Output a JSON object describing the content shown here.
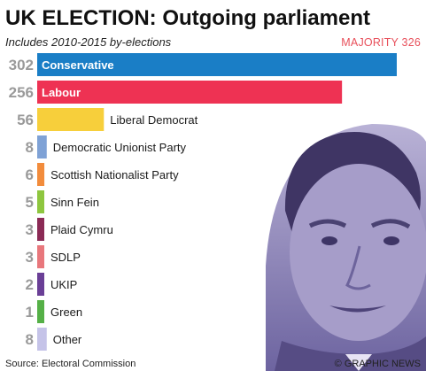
{
  "header": {
    "title": "UK ELECTION: Outgoing parliament",
    "subtitle": "Includes 2010-2015 by-elections",
    "majority_label": "MAJORITY 326"
  },
  "footer": {
    "source": "Source: Electoral Commission",
    "credit": "© GRAPHIC NEWS"
  },
  "colors": {
    "majority": "#e8505b",
    "seat_numbers": "#9a9a9a",
    "photo_tint": "#8a80b8"
  },
  "photo": {
    "icon": "politician-portrait-icon"
  },
  "chart_data": {
    "type": "bar",
    "orientation": "horizontal",
    "title": "UK ELECTION: Outgoing parliament",
    "subtitle": "Includes 2010-2015 by-elections",
    "xlabel": "",
    "ylabel": "",
    "xlim": [
      0,
      302
    ],
    "grid": false,
    "categories": [
      "Conservative",
      "Labour",
      "Liberal Democrat",
      "Democratic Unionist Party",
      "Scottish Nationalist Party",
      "Sinn Fein",
      "Plaid Cymru",
      "SDLP",
      "UKIP",
      "Green",
      "Other"
    ],
    "values": [
      302,
      256,
      56,
      8,
      6,
      5,
      3,
      3,
      2,
      1,
      8
    ],
    "colors": [
      "#1a7ec6",
      "#ee3253",
      "#f7cf3b",
      "#7fa2d6",
      "#f28c3c",
      "#8ec63f",
      "#8b2a55",
      "#e8777c",
      "#6a3f96",
      "#55b047",
      "#c5c3e8"
    ],
    "label_inside": [
      true,
      true,
      false,
      false,
      false,
      false,
      false,
      false,
      false,
      false,
      false
    ]
  }
}
